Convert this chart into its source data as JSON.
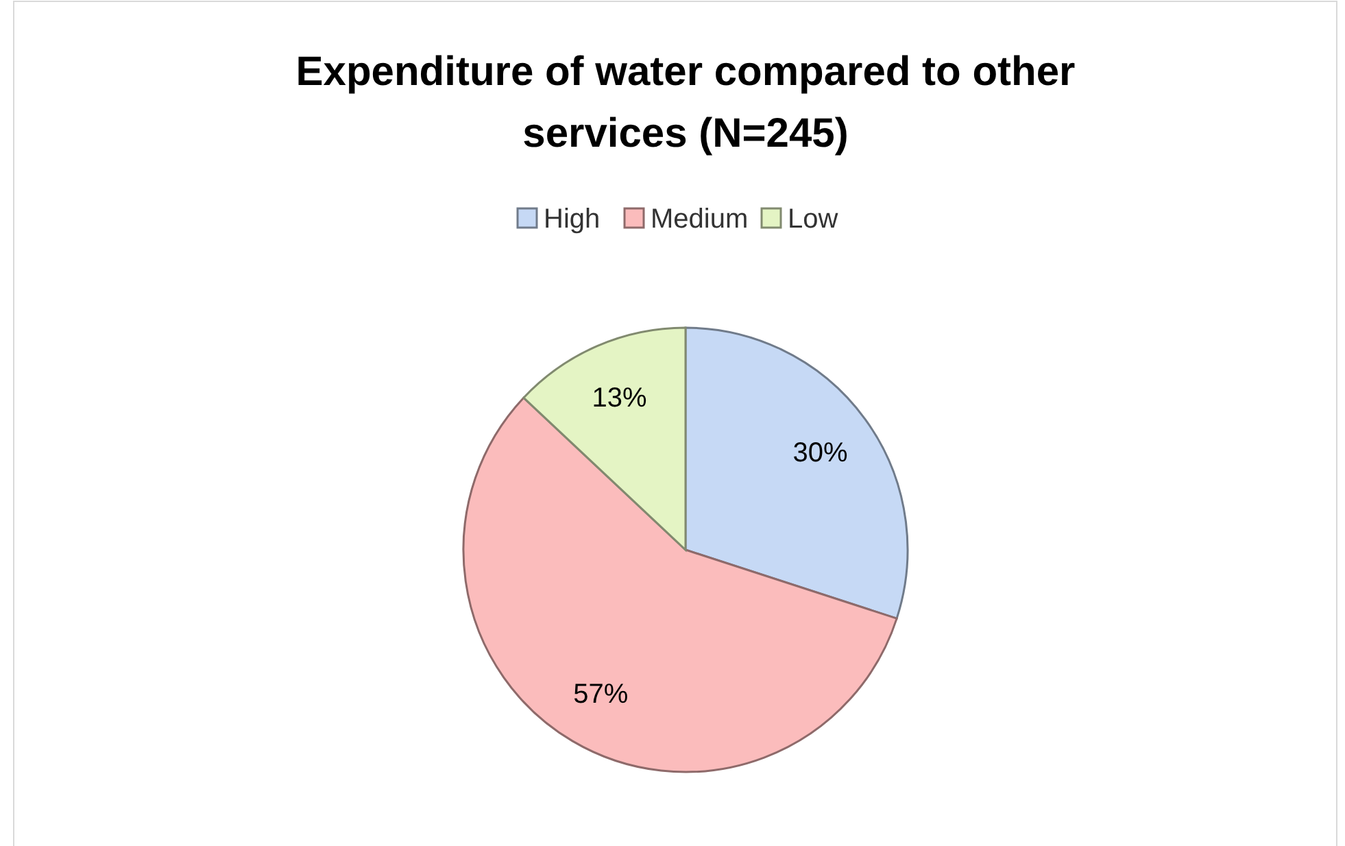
{
  "chart_data": {
    "type": "pie",
    "title": "Expenditure of water compared to other services (N=245)",
    "categories": [
      "High",
      "Medium",
      "Low"
    ],
    "values": [
      30,
      57,
      13
    ],
    "colors": [
      "#c6d9f5",
      "#fbbcbc",
      "#e4f4c4"
    ],
    "value_labels": [
      "30%",
      "57%",
      "13%"
    ],
    "legend": "top"
  }
}
